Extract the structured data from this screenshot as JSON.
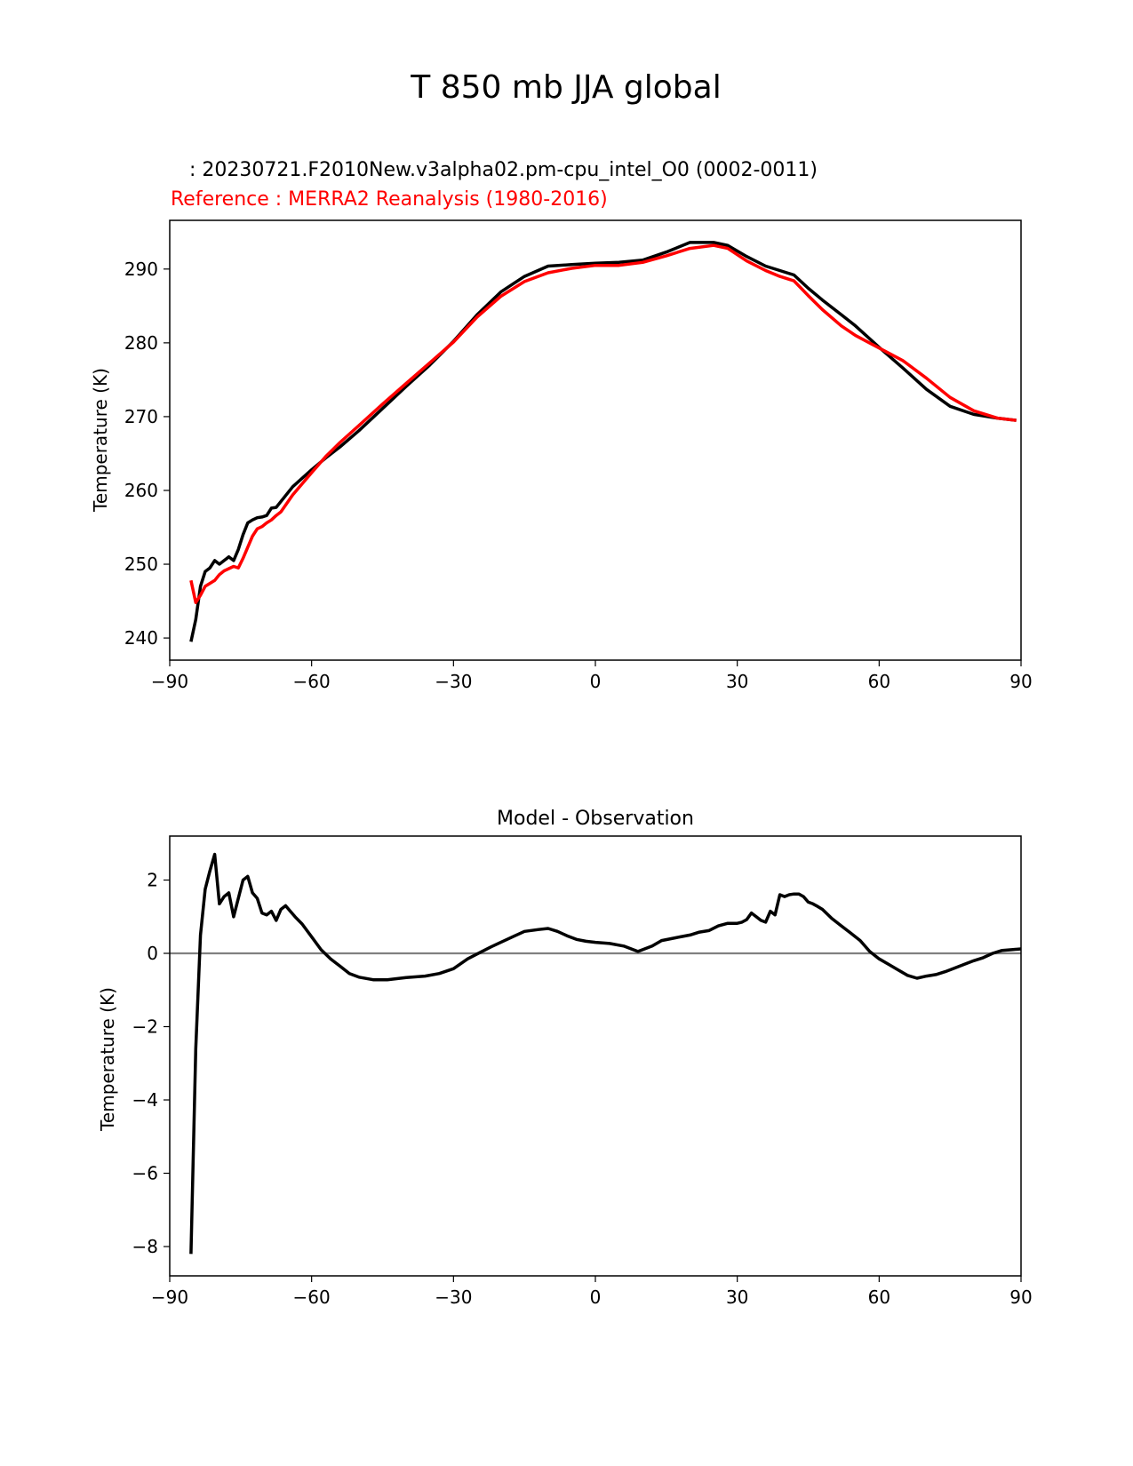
{
  "figure": {
    "title": "T 850 mb JJA global"
  },
  "colors": {
    "test": "#000000",
    "reference": "#ff0000",
    "zero_line": "#808080",
    "axis": "#000000"
  },
  "chart_data": [
    {
      "type": "line",
      "panel": "top",
      "test_label": "   : 20230721.F2010New.v3alpha02.pm-cpu_intel_O0 (0002-0011)",
      "reference_label": "Reference : MERRA2 Reanalysis (1980-2016)",
      "xlabel": "",
      "ylabel": "Temperature (K)",
      "xlim": [
        -90,
        90
      ],
      "ylim": [
        237,
        296.6
      ],
      "xticks": [
        -90,
        -60,
        -30,
        0,
        30,
        60,
        90
      ],
      "xtick_labels": [
        "−90",
        "−60",
        "−30",
        "0",
        "30",
        "60",
        "90"
      ],
      "yticks": [
        240,
        250,
        260,
        270,
        280,
        290
      ],
      "ytick_labels": [
        "240",
        "250",
        "260",
        "270",
        "280",
        "290"
      ],
      "series": [
        {
          "name": "Test",
          "color": "#000000",
          "x": [
            -85.5,
            -84.5,
            -83.5,
            -82.5,
            -81.5,
            -80.5,
            -79.5,
            -78.5,
            -77.5,
            -76.5,
            -75.5,
            -74.5,
            -73.5,
            -72.5,
            -71.5,
            -70.5,
            -69.5,
            -68.5,
            -67.5,
            -66.5,
            -64,
            -60,
            -57,
            -54,
            -50,
            -45,
            -40,
            -35,
            -30,
            -25,
            -20,
            -15,
            -10,
            -5,
            0,
            5,
            10,
            15,
            20,
            25,
            28,
            32,
            36,
            39,
            42,
            45,
            48,
            52,
            55,
            60,
            65,
            70,
            75,
            80,
            85,
            89
          ],
          "values": [
            239.5,
            242.5,
            247,
            249,
            249.5,
            250.5,
            250,
            250.5,
            251,
            250.5,
            252,
            254,
            255.6,
            256,
            256.3,
            256.4,
            256.6,
            257.6,
            257.7,
            258.5,
            260.5,
            262.8,
            264.4,
            265.9,
            268.1,
            271.1,
            274.1,
            277,
            280.2,
            283.8,
            286.9,
            289,
            290.4,
            290.6,
            290.8,
            290.9,
            291.2,
            292.3,
            293.6,
            293.6,
            293.2,
            291.7,
            290.4,
            289.8,
            289.2,
            287.4,
            285.8,
            283.8,
            282.3,
            279.4,
            276.6,
            273.7,
            271.4,
            270.3,
            269.8,
            269.5
          ]
        },
        {
          "name": "Reference",
          "color": "#ff0000",
          "x": [
            -85.5,
            -84.5,
            -83.5,
            -82.5,
            -81.5,
            -80.5,
            -79.5,
            -78.5,
            -77.5,
            -76.5,
            -75.5,
            -74.5,
            -73.5,
            -72.5,
            -71.5,
            -70.5,
            -69.5,
            -68.5,
            -67.5,
            -66.5,
            -64,
            -60,
            -57,
            -54,
            -50,
            -45,
            -40,
            -35,
            -30,
            -25,
            -20,
            -15,
            -10,
            -5,
            0,
            5,
            10,
            15,
            20,
            25,
            28,
            32,
            36,
            39,
            42,
            45,
            48,
            52,
            55,
            60,
            65,
            70,
            75,
            80,
            85,
            89
          ],
          "values": [
            247.8,
            244.8,
            245.8,
            247,
            247.4,
            247.8,
            248.6,
            249.1,
            249.4,
            249.7,
            249.5,
            250.8,
            252.3,
            253.8,
            254.8,
            255.1,
            255.6,
            256,
            256.6,
            257.1,
            259.4,
            262.4,
            264.6,
            266.5,
            268.8,
            271.7,
            274.5,
            277.3,
            280.1,
            283.5,
            286.3,
            288.3,
            289.5,
            290.1,
            290.5,
            290.5,
            290.9,
            291.8,
            292.8,
            293.2,
            292.8,
            291.1,
            289.8,
            289,
            288.4,
            286.4,
            284.5,
            282.3,
            281,
            279.3,
            277.6,
            275.2,
            272.6,
            270.8,
            269.8,
            269.5
          ]
        }
      ]
    },
    {
      "type": "line",
      "panel": "bottom",
      "title": "Model - Observation",
      "xlabel": "",
      "ylabel": "Temperature (K)",
      "xlim": [
        -90,
        90
      ],
      "ylim": [
        -8.8,
        3.2
      ],
      "xticks": [
        -90,
        -60,
        -30,
        0,
        30,
        60,
        90
      ],
      "xtick_labels": [
        "−90",
        "−60",
        "−30",
        "0",
        "30",
        "60",
        "90"
      ],
      "yticks": [
        -8,
        -6,
        -4,
        -2,
        0,
        2
      ],
      "ytick_labels": [
        "−8",
        "−6",
        "−4",
        "−2",
        "0",
        "2"
      ],
      "zero_line": 0,
      "series": [
        {
          "name": "Model - Observation",
          "color": "#000000",
          "x": [
            -85.5,
            -84.5,
            -83.5,
            -82.5,
            -81.5,
            -80.5,
            -79.5,
            -78.5,
            -77.5,
            -76.5,
            -75.5,
            -74.5,
            -73.5,
            -72.5,
            -71.5,
            -70.5,
            -69.5,
            -68.5,
            -67.5,
            -66.5,
            -65.5,
            -64.5,
            -63.5,
            -62,
            -60,
            -58,
            -56,
            -54,
            -52,
            -50,
            -47,
            -44,
            -40,
            -36,
            -33,
            -30,
            -27,
            -24,
            -22,
            -20,
            -17,
            -15,
            -12,
            -10,
            -8,
            -6,
            -4,
            -2,
            0,
            3,
            6,
            9,
            12,
            14,
            16,
            18,
            20,
            22,
            24,
            26,
            28,
            30,
            31,
            32,
            33,
            34,
            35,
            36,
            37,
            38,
            39,
            40,
            41,
            42,
            43,
            44,
            45,
            46,
            47,
            48,
            50,
            52,
            54,
            56,
            58,
            60,
            62,
            64,
            66,
            68,
            70,
            72,
            74,
            76,
            78,
            80,
            82,
            84,
            86,
            88,
            90
          ],
          "values": [
            -8.2,
            -2.6,
            0.5,
            1.75,
            2.25,
            2.7,
            1.35,
            1.55,
            1.65,
            1.0,
            1.5,
            2.0,
            2.1,
            1.65,
            1.5,
            1.1,
            1.05,
            1.15,
            0.9,
            1.2,
            1.3,
            1.15,
            1.0,
            0.8,
            0.45,
            0.1,
            -0.15,
            -0.35,
            -0.55,
            -0.65,
            -0.72,
            -0.72,
            -0.66,
            -0.62,
            -0.55,
            -0.42,
            -0.15,
            0.05,
            0.18,
            0.3,
            0.48,
            0.6,
            0.65,
            0.68,
            0.6,
            0.48,
            0.38,
            0.33,
            0.3,
            0.27,
            0.2,
            0.05,
            0.2,
            0.35,
            0.4,
            0.45,
            0.5,
            0.58,
            0.62,
            0.75,
            0.82,
            0.82,
            0.85,
            0.92,
            1.1,
            1.0,
            0.9,
            0.85,
            1.15,
            1.05,
            1.6,
            1.55,
            1.6,
            1.62,
            1.62,
            1.55,
            1.4,
            1.35,
            1.28,
            1.2,
            0.95,
            0.75,
            0.55,
            0.35,
            0.05,
            -0.15,
            -0.3,
            -0.45,
            -0.6,
            -0.68,
            -0.62,
            -0.58,
            -0.5,
            -0.4,
            -0.3,
            -0.2,
            -0.12,
            0.0,
            0.08,
            0.1,
            0.12
          ]
        }
      ]
    }
  ]
}
